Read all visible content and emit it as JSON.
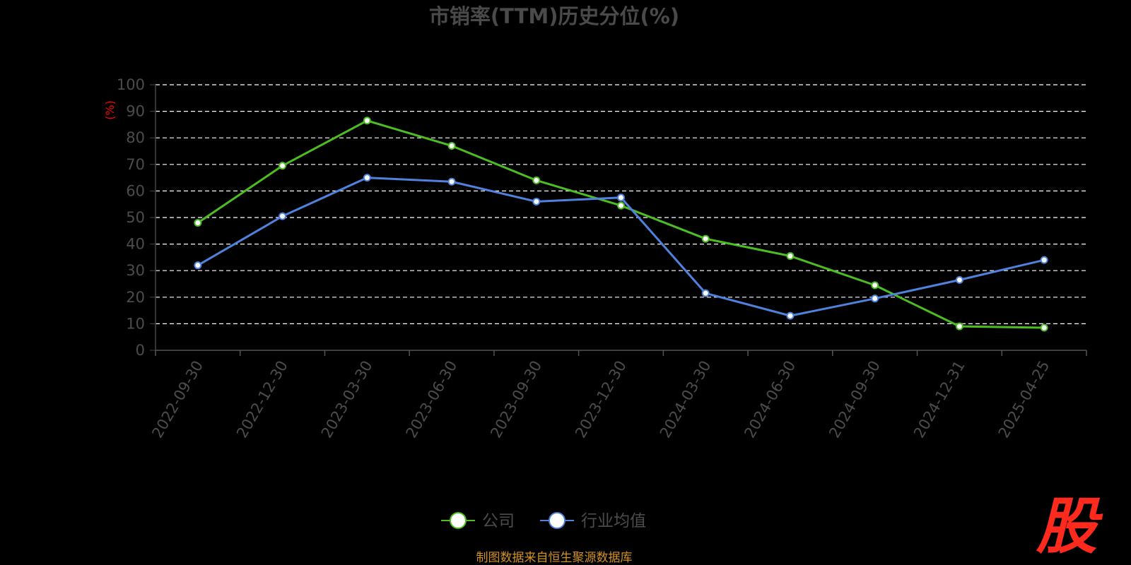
{
  "chart_data": {
    "type": "line",
    "title": "市销率(TTM)历史分位(%)",
    "ylabel": "(%)",
    "ylim": [
      0,
      100
    ],
    "yticks": [
      0,
      10,
      20,
      30,
      40,
      50,
      60,
      70,
      80,
      90,
      100
    ],
    "grid": true,
    "legend_position": "bottom-center",
    "categories": [
      "2022-09-30",
      "2022-12-30",
      "2023-03-30",
      "2023-06-30",
      "2023-09-30",
      "2023-12-30",
      "2024-03-30",
      "2024-06-30",
      "2024-09-30",
      "2024-12-31",
      "2025-04-25"
    ],
    "series": [
      {
        "name": "公司",
        "color": "#4cbd22",
        "values": [
          48,
          69.5,
          86.5,
          77,
          64,
          54.5,
          42,
          35.5,
          24.5,
          9,
          8.5
        ]
      },
      {
        "name": "行业均值",
        "color": "#4f82dc",
        "values": [
          32,
          50.5,
          65,
          63.5,
          56,
          57.5,
          21.5,
          13,
          19.5,
          26.5,
          34
        ]
      }
    ]
  },
  "footer": {
    "source": "制图数据来自恒生聚源数据库"
  },
  "logo": {
    "text": "股",
    "color": "#ff2a1e"
  }
}
